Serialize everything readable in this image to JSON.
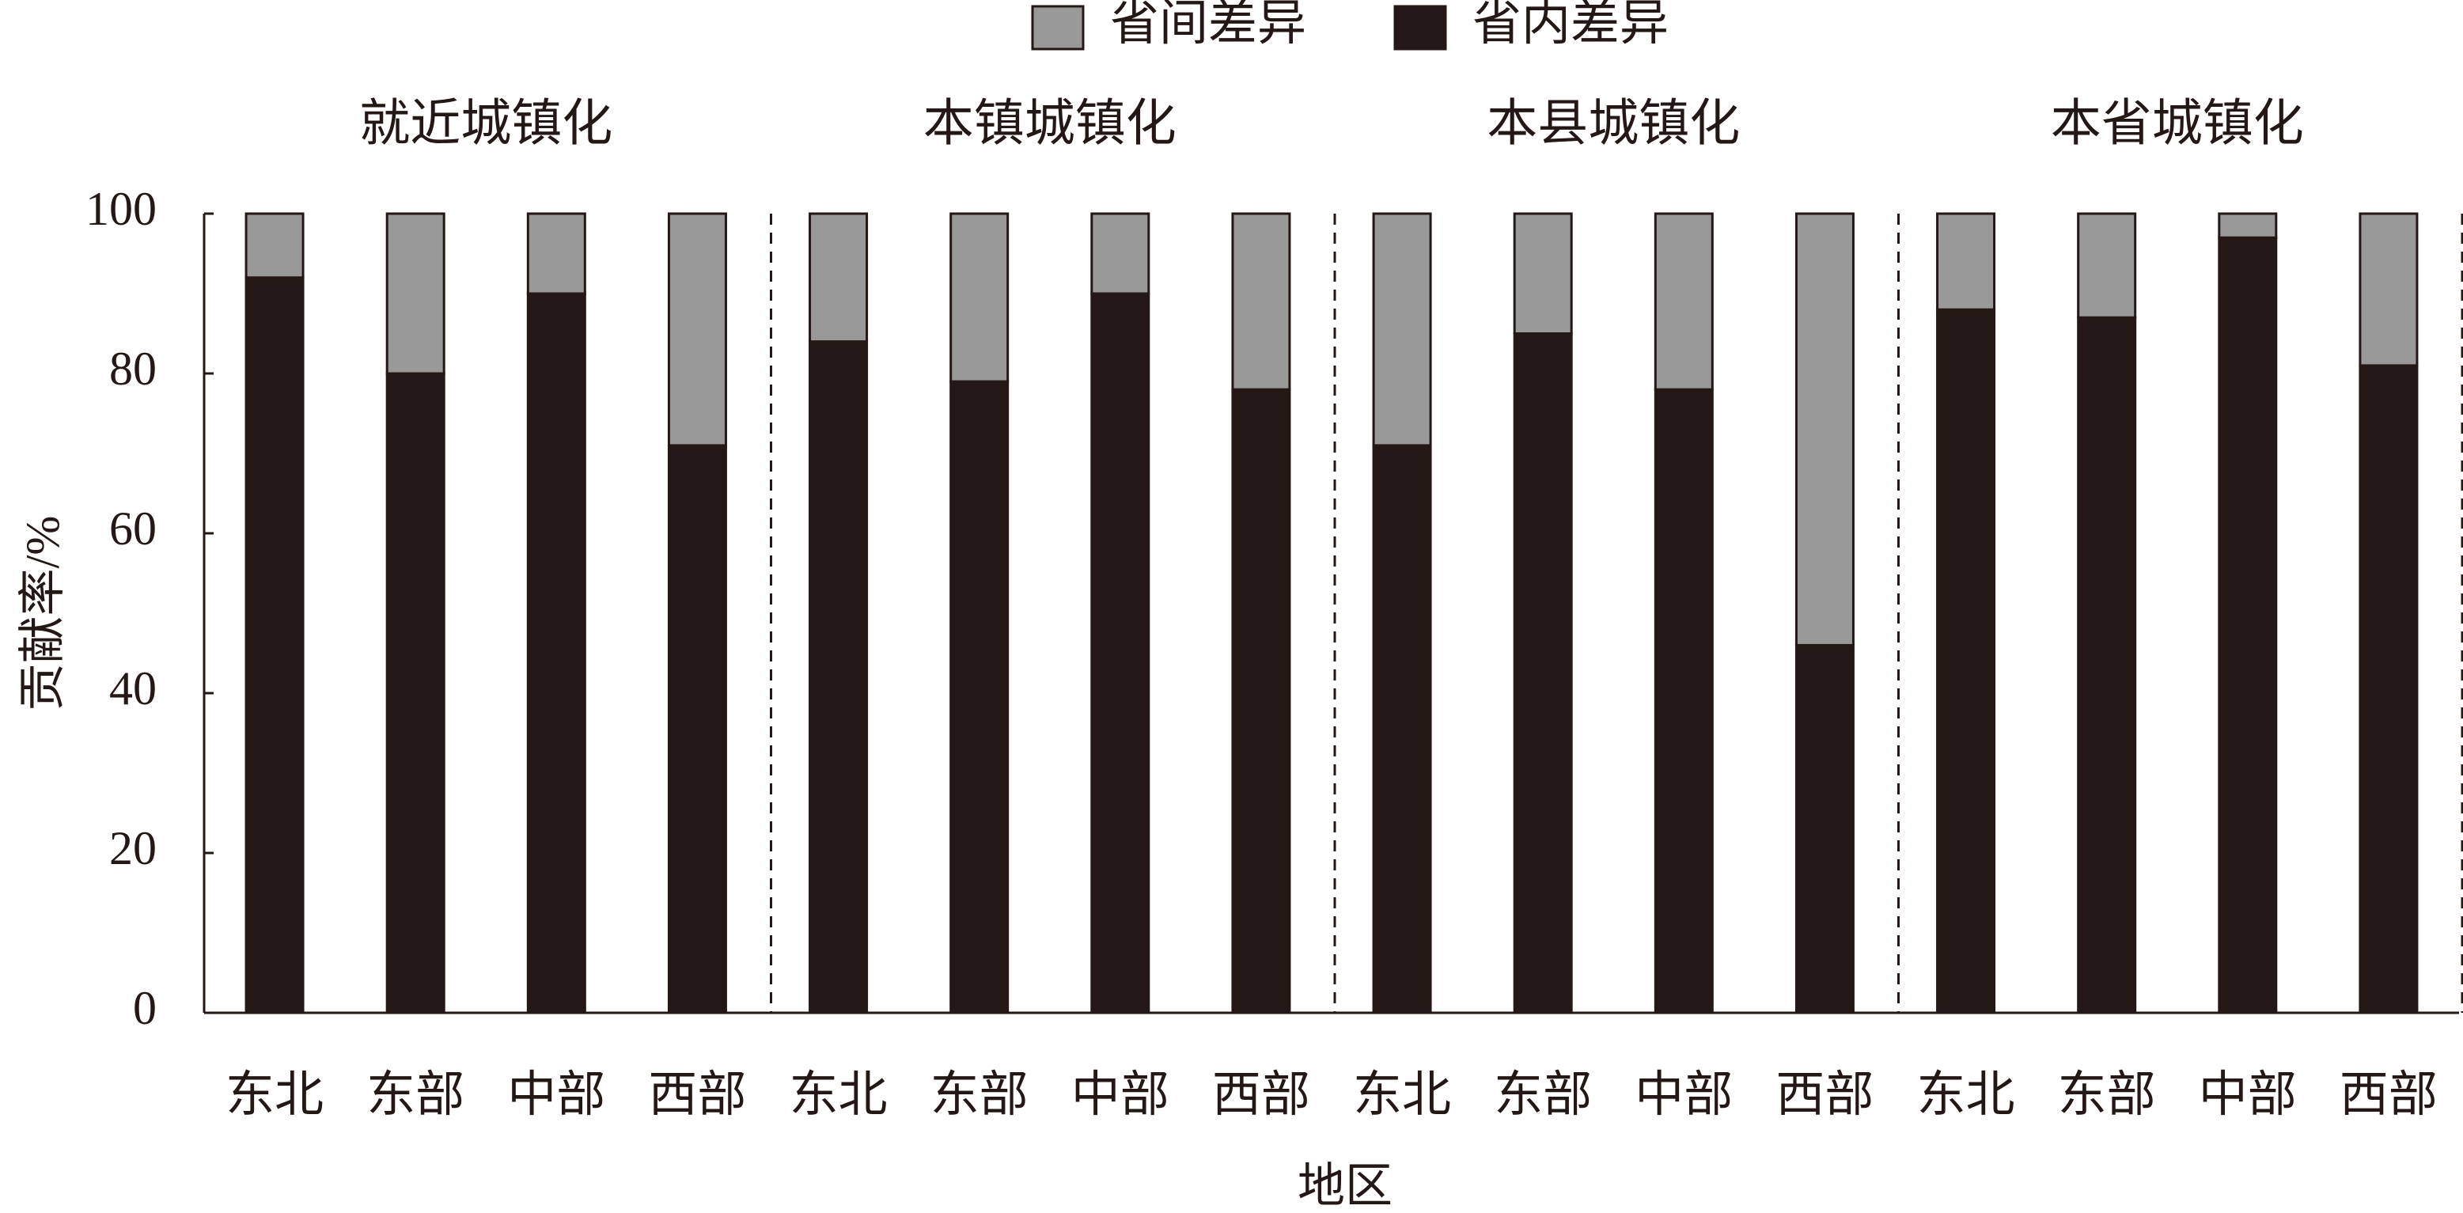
{
  "chart_data": {
    "type": "stacked_bar",
    "ylabel": "贡献率/%",
    "xlabel": "地区",
    "groups": [
      "就近城镇化",
      "本镇城镇化",
      "本县城镇化",
      "本省城镇化"
    ],
    "categories": [
      "东北",
      "东部",
      "中部",
      "西部",
      "东北",
      "东部",
      "中部",
      "西部",
      "东北",
      "东部",
      "中部",
      "西部",
      "东北",
      "东部",
      "中部",
      "西部"
    ],
    "series": [
      {
        "name": "省内差异",
        "color": "#231815",
        "values": [
          92,
          80,
          90,
          71,
          84,
          79,
          90,
          78,
          71,
          85,
          78,
          46,
          88,
          87,
          97,
          81
        ]
      },
      {
        "name": "省间差异",
        "color": "#999999",
        "values": [
          8,
          20,
          10,
          29,
          16,
          21,
          10,
          22,
          29,
          15,
          22,
          54,
          12,
          13,
          3,
          19
        ]
      }
    ],
    "legend_order": [
      1,
      0
    ],
    "ylim": [
      0,
      100
    ],
    "yticks": [
      0,
      20,
      40,
      60,
      80,
      100
    ],
    "grid": false
  }
}
